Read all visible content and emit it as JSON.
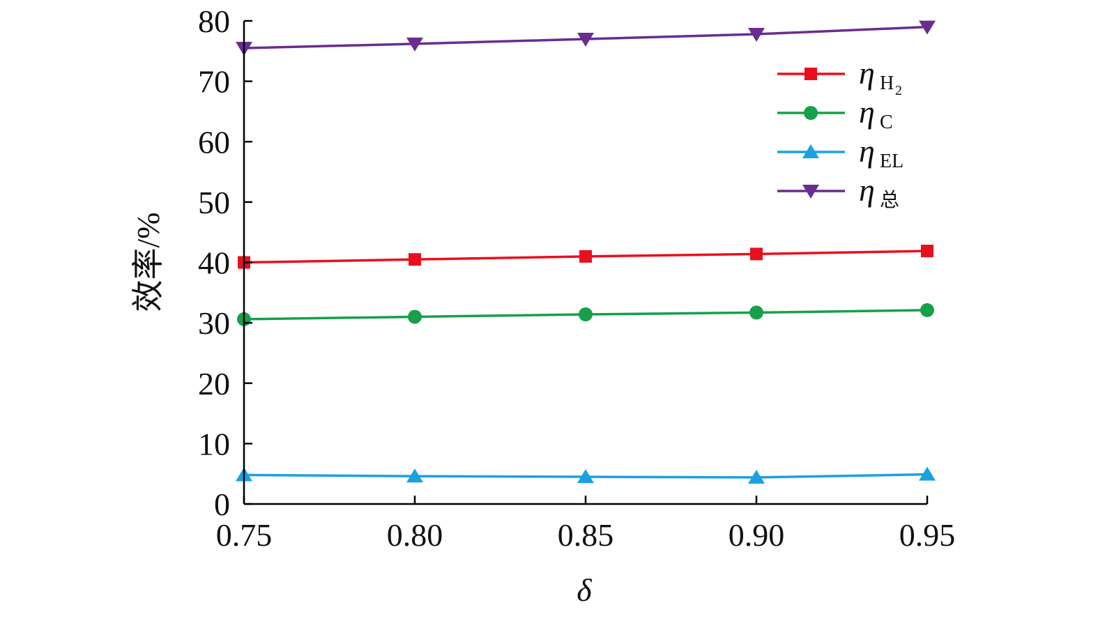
{
  "chart_data": {
    "type": "line",
    "x": [
      0.75,
      0.8,
      0.85,
      0.9,
      0.95
    ],
    "x_tick_labels": [
      "0.75",
      "0.80",
      "0.85",
      "0.90",
      "0.95"
    ],
    "y_ticks": [
      0,
      10,
      20,
      30,
      40,
      50,
      60,
      70,
      80
    ],
    "xlim": [
      0.75,
      0.95
    ],
    "ylim": [
      0,
      80
    ],
    "xlabel": "δ",
    "ylabel": "效率/%",
    "grid": false,
    "legend_position": "top-right",
    "series": [
      {
        "id": "h2",
        "name": "η",
        "subscript": "H",
        "subscript2": "2",
        "color": "#e8101e",
        "marker": "square",
        "values": [
          40.0,
          40.5,
          41.0,
          41.4,
          41.9
        ]
      },
      {
        "id": "c",
        "name": "η",
        "subscript": "C",
        "subscript2": "",
        "color": "#16a04a",
        "marker": "circle",
        "values": [
          30.6,
          31.0,
          31.4,
          31.7,
          32.1
        ]
      },
      {
        "id": "el",
        "name": "η",
        "subscript": "EL",
        "subscript2": "",
        "color": "#1ba1e2",
        "marker": "triangle-up",
        "values": [
          4.8,
          4.6,
          4.5,
          4.4,
          4.9
        ]
      },
      {
        "id": "total",
        "name": "η",
        "subscript": "总",
        "subscript2": "",
        "color": "#6a2d8f",
        "marker": "triangle-down",
        "values": [
          75.5,
          76.2,
          77.0,
          77.8,
          79.0
        ]
      }
    ]
  }
}
